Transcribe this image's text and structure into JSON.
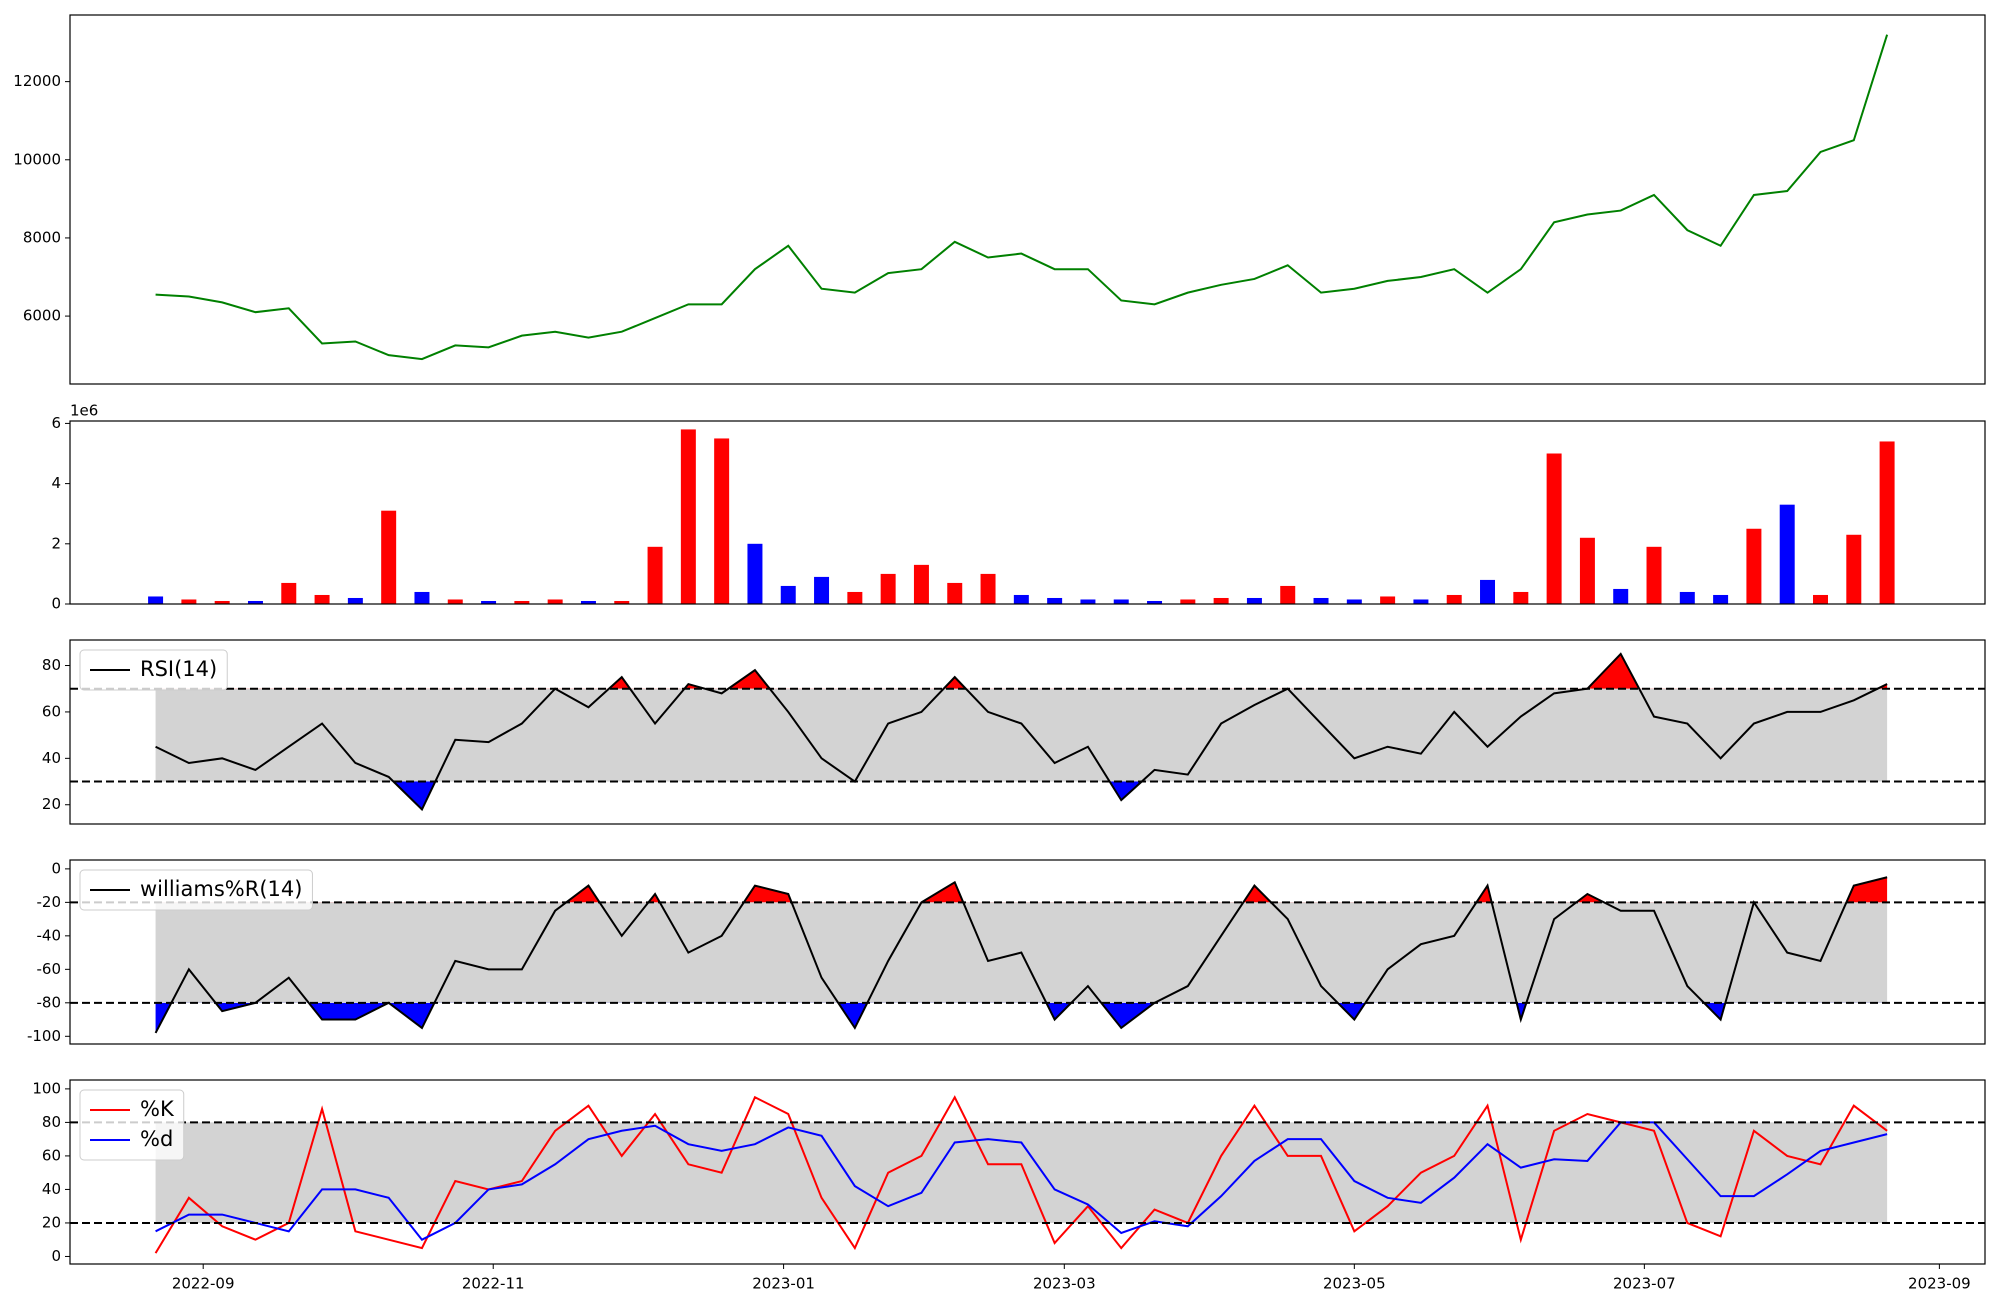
{
  "chart_data": [
    {
      "type": "line",
      "series": [
        {
          "color": "#008000",
          "values": [
            6550,
            6500,
            6350,
            6100,
            6200,
            5300,
            5350,
            5000,
            4900,
            5250,
            5200,
            5500,
            5600,
            5450,
            5600,
            5950,
            6300,
            6300,
            7200,
            7800,
            6700,
            6600,
            7100,
            7200,
            7900,
            7500,
            7600,
            7200,
            7200,
            6400,
            6300,
            6600,
            6800,
            6950,
            7300,
            6600,
            6700,
            6900,
            7000,
            7200,
            6600,
            7200,
            8400,
            8600,
            8700,
            9100,
            8200,
            7800,
            9100,
            9200,
            10200,
            10500,
            13200
          ]
        }
      ],
      "ylim": [
        4262,
        13705
      ],
      "yticks": [
        6000,
        8000,
        10000,
        12000
      ]
    },
    {
      "type": "bar",
      "offset_label": "1e6",
      "values": [
        0.25,
        0.15,
        0.1,
        0.1,
        0.7,
        0.3,
        0.2,
        3.1,
        0.4,
        0.15,
        0.1,
        0.1,
        0.15,
        0.1,
        0.1,
        1.9,
        5.8,
        5.5,
        2.0,
        0.6,
        0.9,
        0.4,
        1.0,
        1.3,
        0.7,
        1.0,
        0.3,
        0.2,
        0.15,
        0.15,
        0.1,
        0.15,
        0.2,
        0.2,
        0.6,
        0.2,
        0.15,
        0.25,
        0.15,
        0.3,
        0.8,
        0.4,
        5.0,
        2.2,
        0.5,
        1.9,
        0.4,
        0.3,
        2.5,
        3.3,
        0.3,
        2.3,
        5.4
      ],
      "colors": [
        "blue",
        "red",
        "red",
        "blue",
        "red",
        "red",
        "blue",
        "red",
        "blue",
        "red",
        "blue",
        "red",
        "red",
        "blue",
        "red",
        "red",
        "red",
        "red",
        "blue",
        "blue",
        "blue",
        "red",
        "red",
        "red",
        "red",
        "red",
        "blue",
        "blue",
        "blue",
        "blue",
        "blue",
        "red",
        "red",
        "blue",
        "red",
        "blue",
        "blue",
        "red",
        "blue",
        "red",
        "blue",
        "red",
        "red",
        "red",
        "blue",
        "red",
        "blue",
        "blue",
        "red",
        "blue",
        "red",
        "red",
        "red"
      ],
      "ylim": [
        0,
        6.08
      ],
      "yticks": [
        0,
        2,
        4,
        6
      ]
    },
    {
      "type": "line",
      "legend": "upper left",
      "hlines": [
        30,
        70
      ],
      "band_color": "#d3d3d3",
      "above_color": "red",
      "below_color": "blue",
      "series": [
        {
          "name": "RSI(14)",
          "color": "black",
          "values": [
            45,
            38,
            40,
            35,
            45,
            55,
            38,
            32,
            18,
            48,
            47,
            55,
            70,
            62,
            75,
            55,
            72,
            68,
            78,
            60,
            40,
            30,
            55,
            60,
            75,
            60,
            55,
            38,
            45,
            22,
            35,
            33,
            55,
            63,
            70,
            55,
            40,
            45,
            42,
            60,
            45,
            58,
            68,
            70,
            85,
            58,
            55,
            40,
            55,
            60,
            60,
            65,
            72
          ]
        }
      ],
      "ylim": [
        11.7,
        91
      ],
      "yticks": [
        20,
        40,
        60,
        80
      ]
    },
    {
      "type": "line",
      "legend": "upper left",
      "hlines": [
        -20,
        -80
      ],
      "band_color": "#d3d3d3",
      "above_color": "red",
      "below_color": "blue",
      "series": [
        {
          "name": "williams%R(14)",
          "color": "black",
          "values": [
            -98,
            -60,
            -85,
            -80,
            -65,
            -90,
            -90,
            -80,
            -95,
            -55,
            -60,
            -60,
            -25,
            -10,
            -40,
            -15,
            -50,
            -40,
            -10,
            -15,
            -65,
            -95,
            -55,
            -20,
            -8,
            -55,
            -50,
            -90,
            -70,
            -95,
            -80,
            -70,
            -40,
            -10,
            -30,
            -70,
            -90,
            -60,
            -45,
            -40,
            -10,
            -90,
            -30,
            -15,
            -25,
            -25,
            -70,
            -90,
            -20,
            -50,
            -55,
            -10,
            -5
          ]
        }
      ],
      "ylim": [
        -104.6,
        5.3
      ],
      "yticks": [
        -100,
        -80,
        -60,
        -40,
        -20,
        0
      ]
    },
    {
      "type": "line",
      "legend": "upper left",
      "hlines": [
        20,
        80
      ],
      "band_color": "#d3d3d3",
      "series": [
        {
          "name": "%K",
          "color": "red",
          "values": [
            2,
            35,
            18,
            10,
            20,
            88,
            15,
            10,
            5,
            45,
            40,
            45,
            75,
            90,
            60,
            85,
            55,
            50,
            95,
            85,
            35,
            5,
            50,
            60,
            95,
            55,
            55,
            8,
            30,
            5,
            28,
            20,
            60,
            90,
            60,
            60,
            15,
            30,
            50,
            60,
            90,
            10,
            75,
            85,
            80,
            75,
            20,
            12,
            75,
            60,
            55,
            90,
            75
          ]
        },
        {
          "name": "%d",
          "color": "blue",
          "values": [
            15,
            25,
            25,
            20,
            15,
            40,
            40,
            35,
            10,
            20,
            40,
            43,
            55,
            70,
            75,
            78,
            67,
            63,
            67,
            77,
            72,
            42,
            30,
            38,
            68,
            70,
            68,
            40,
            31,
            14,
            21,
            18,
            36,
            57,
            70,
            70,
            45,
            35,
            32,
            47,
            67,
            53,
            58,
            57,
            80,
            80,
            58,
            36,
            36,
            49,
            63,
            68,
            73
          ]
        }
      ],
      "ylim": [
        -4.5,
        105.3
      ],
      "yticks": [
        0,
        20,
        40,
        60,
        80,
        100
      ],
      "xlim": [
        -2.57,
        54.94
      ],
      "xticks": [
        {
          "value": 1.43,
          "label": "2022-09"
        },
        {
          "value": 10.14,
          "label": "2022-11"
        },
        {
          "value": 18.86,
          "label": "2023-01"
        },
        {
          "value": 27.29,
          "label": "2023-03"
        },
        {
          "value": 36,
          "label": "2023-05"
        },
        {
          "value": 44.71,
          "label": "2023-07"
        },
        {
          "value": 53.57,
          "label": "2023-09"
        }
      ]
    }
  ]
}
